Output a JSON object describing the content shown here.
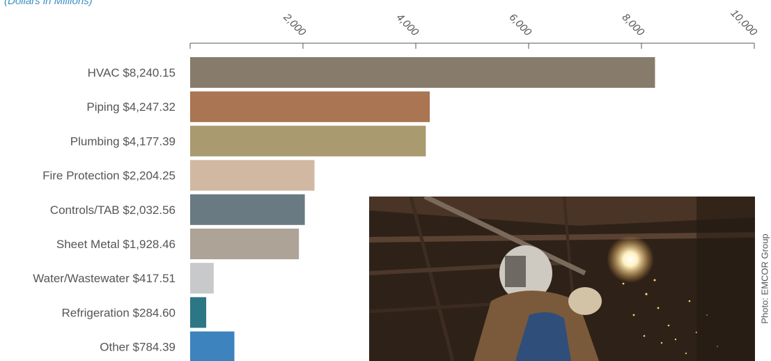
{
  "subtitle": "(Dollars in Millions)",
  "photo_credit": "Photo: EMCOR Group",
  "photo_description": "welder",
  "chart_data": {
    "type": "bar",
    "orientation": "horizontal",
    "categories": [
      "HVAC",
      "Piping",
      "Plumbing",
      "Fire Protection",
      "Controls/TAB",
      "Sheet Metal",
      "Water/Wastewater",
      "Refrigeration",
      "Other"
    ],
    "value_labels": [
      "$8,240.15",
      "$4,247.32",
      "$4,177.39",
      "$2,204.25",
      "$2,032.56",
      "$1,928.46",
      "$417.51",
      "$284.60",
      "$784.39"
    ],
    "values": [
      8240.15,
      4247.32,
      4177.39,
      2204.25,
      2032.56,
      1928.46,
      417.51,
      284.6,
      784.39
    ],
    "bar_colors": [
      "#877b6c",
      "#aa7553",
      "#a99a6f",
      "#d1b8a3",
      "#697a83",
      "#ada397",
      "#c8c9cb",
      "#2d7686",
      "#3d83bd"
    ],
    "ticks": [
      2000,
      4000,
      6000,
      8000,
      10000
    ],
    "tick_labels": [
      "2,000",
      "4,000",
      "6,000",
      "8,000",
      "10,000"
    ],
    "xlim": [
      0,
      10000
    ],
    "axis_position": "top",
    "grid": false
  }
}
